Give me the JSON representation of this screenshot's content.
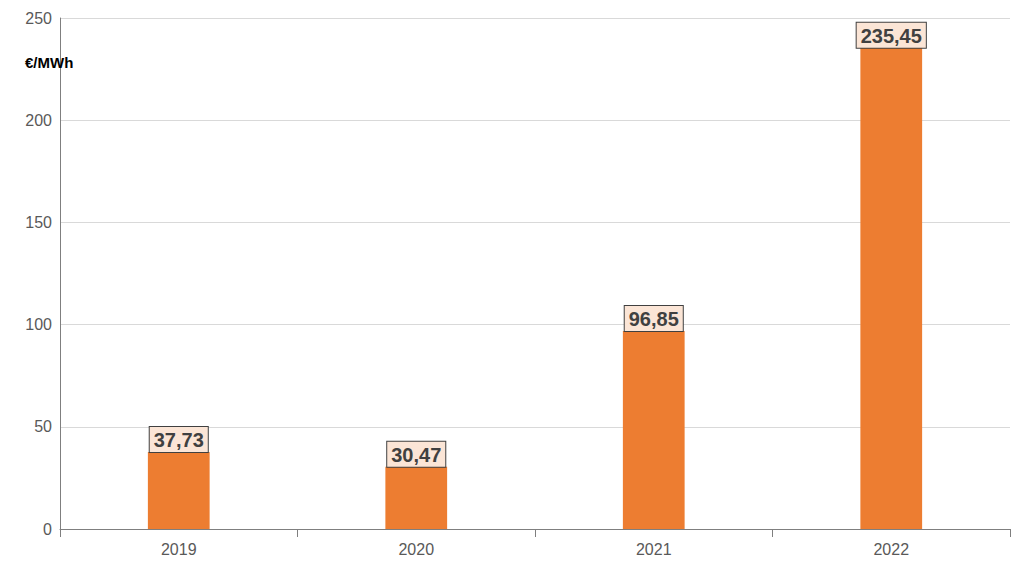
{
  "chart_data": {
    "type": "bar",
    "ylabel": "€/MWh",
    "categories": [
      "2019",
      "2020",
      "2021",
      "2022"
    ],
    "values": [
      37.73,
      30.47,
      96.85,
      235.45
    ],
    "value_labels": [
      "37,73",
      "30,47",
      "96,85",
      "235,45"
    ],
    "color": "#ed7d31",
    "ylim": [
      0,
      250
    ],
    "yticks": [
      0,
      50,
      100,
      150,
      200,
      250
    ],
    "grid": true,
    "data_labels": true
  }
}
